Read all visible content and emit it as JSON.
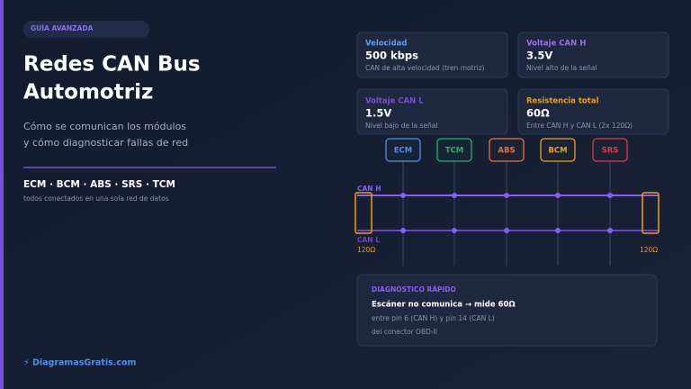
{
  "header": {
    "badge": "GUÍA AVANZADA",
    "title_lines": [
      "Redes CAN Bus",
      "Automotriz"
    ],
    "subtitle_lines": [
      "Cómo se comunican los módulos",
      "y cómo diagnosticar fallas de red"
    ]
  },
  "modules_line": "ECM · BCM · ABS · SRS · TCM",
  "modules_note": "todos conectados en una sola red de datos",
  "footer": "⚡ DiagramasGratis.com",
  "cards": [
    {
      "label": "Velocidad",
      "value": "500 kbps",
      "note": "CAN de alta velocidad (tren motriz)"
    },
    {
      "label": "Voltaje CAN H",
      "value": "3.5V",
      "note": "Nivel alto de la señal"
    },
    {
      "label": "Voltaje CAN L",
      "value": "1.5V",
      "note": "Nivel bajo de la señal"
    },
    {
      "label": "Resistencia total",
      "value": "60Ω",
      "note": "Entre CAN H y CAN L (2x 120Ω)"
    }
  ],
  "diagram": {
    "modules": [
      "ECM",
      "TCM",
      "ABS",
      "BCM",
      "SRS"
    ],
    "can_h": "CAN H",
    "can_l": "CAN L",
    "resistor_labels": [
      "120Ω",
      "120Ω"
    ]
  },
  "diagnostic": {
    "title": "DIAGNÓSTICO RÁPIDO",
    "line": "Escáner no comunica → mide 60Ω",
    "notes": [
      "entre pin 6 (CAN H) y pin 14 (CAN L)",
      "del conector OBD-II"
    ]
  }
}
